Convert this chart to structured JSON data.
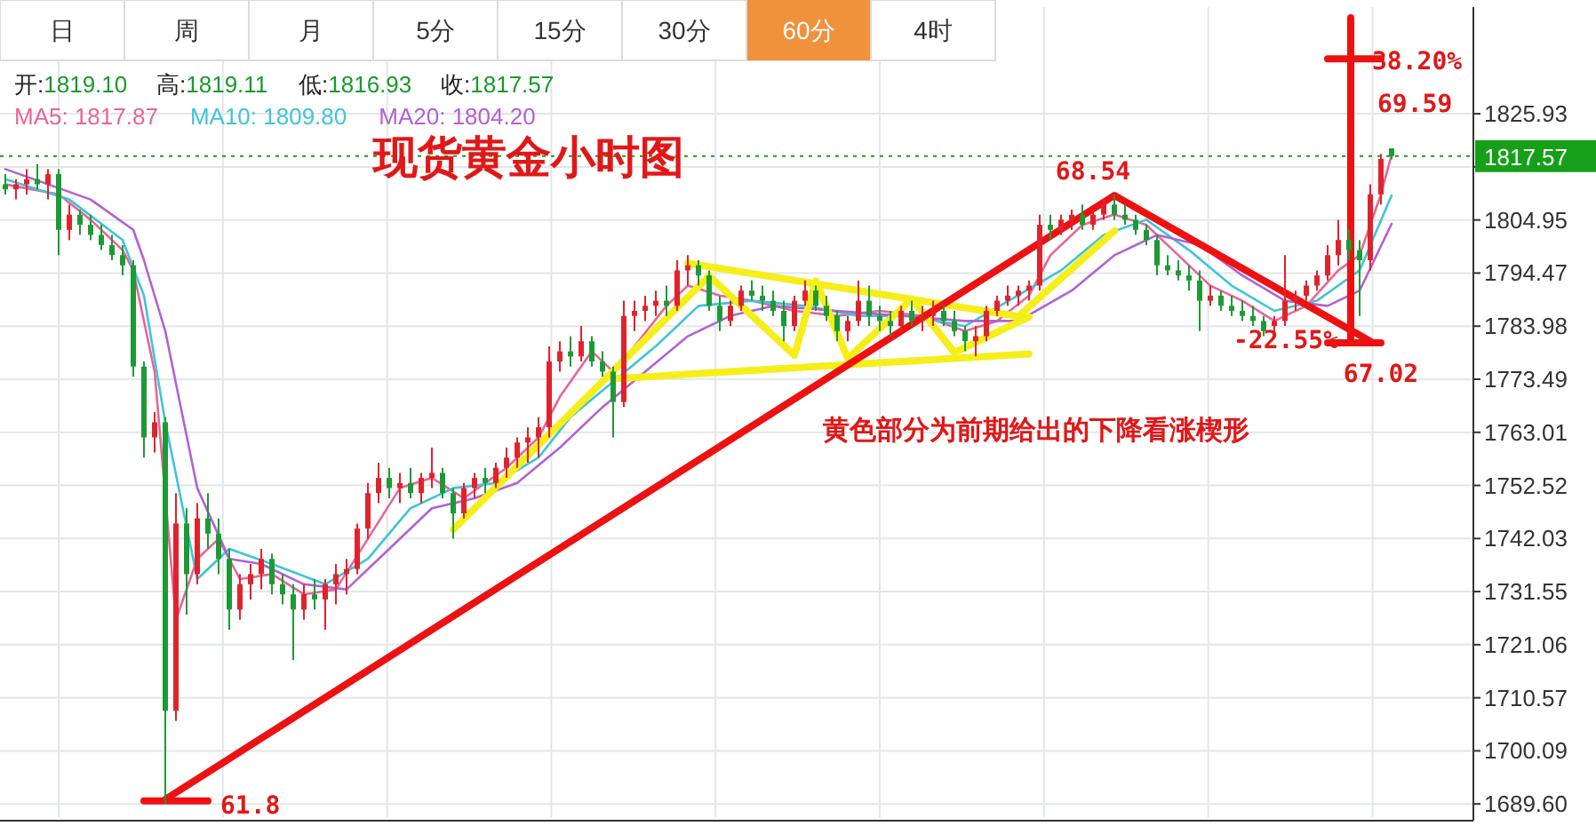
{
  "chart_data": {
    "type": "candlestick",
    "title": "现货黄金小时图",
    "categories": [
      null,
      null,
      null,
      null,
      null,
      null,
      null,
      null,
      null,
      null,
      null,
      null,
      null,
      null,
      null,
      null,
      null,
      null,
      null,
      null,
      null,
      null,
      null,
      null,
      null,
      null,
      null,
      null,
      null,
      null,
      null,
      null,
      null,
      null,
      null,
      null,
      null,
      null,
      null,
      null,
      null,
      null,
      null,
      null,
      null,
      null,
      null,
      null,
      null,
      null,
      null,
      null,
      null,
      null,
      null,
      null,
      null,
      null,
      null,
      null,
      null,
      null,
      null,
      null,
      null,
      null,
      null,
      null,
      null,
      null,
      null,
      null,
      null,
      null,
      null,
      null,
      null,
      null,
      null,
      null,
      null,
      null,
      null,
      null,
      null,
      null,
      null,
      null,
      null,
      null,
      null,
      null,
      null,
      null,
      null,
      null,
      null,
      null,
      null,
      null,
      null,
      null,
      null,
      null,
      null,
      null,
      null,
      null,
      null,
      null,
      null,
      null,
      null,
      null,
      null,
      null,
      null,
      null,
      null,
      null,
      null,
      null,
      null,
      null,
      null,
      null,
      null,
      null,
      null,
      null,
      null
    ],
    "ohlc": [
      [
        1812,
        1814,
        1810,
        1811
      ],
      [
        1811,
        1813,
        1809,
        1812
      ],
      [
        1812,
        1815,
        1810,
        1813
      ],
      [
        1813,
        1816,
        1811,
        1812
      ],
      [
        1812,
        1815,
        1809,
        1814
      ],
      [
        1814,
        1815,
        1798,
        1803
      ],
      [
        1803,
        1808,
        1801,
        1806
      ],
      [
        1806,
        1807,
        1802,
        1804
      ],
      [
        1804,
        1806,
        1801,
        1802
      ],
      [
        1802,
        1804,
        1799,
        1800
      ],
      [
        1800,
        1802,
        1797,
        1798
      ],
      [
        1798,
        1800,
        1794,
        1796
      ],
      [
        1796,
        1797,
        1774,
        1776
      ],
      [
        1776,
        1777,
        1758,
        1762
      ],
      [
        1762,
        1767,
        1759,
        1765
      ],
      [
        1765,
        1766,
        1689.6,
        1708
      ],
      [
        1708,
        1751,
        1706,
        1745
      ],
      [
        1745,
        1748,
        1727,
        1735
      ],
      [
        1735,
        1749,
        1733,
        1746
      ],
      [
        1746,
        1751,
        1740,
        1743
      ],
      [
        1743,
        1746,
        1735,
        1738
      ],
      [
        1738,
        1740,
        1724,
        1728
      ],
      [
        1728,
        1735,
        1726,
        1733
      ],
      [
        1733,
        1737,
        1730,
        1735
      ],
      [
        1735,
        1740,
        1732,
        1738
      ],
      [
        1738,
        1739,
        1731,
        1733
      ],
      [
        1733,
        1735,
        1729,
        1731
      ],
      [
        1731,
        1733,
        1718,
        1728
      ],
      [
        1728,
        1733,
        1726,
        1731
      ],
      [
        1731,
        1734,
        1728,
        1730
      ],
      [
        1730,
        1734,
        1724,
        1733
      ],
      [
        1733,
        1737,
        1729,
        1735
      ],
      [
        1735,
        1738,
        1731,
        1736
      ],
      [
        1736,
        1745,
        1735,
        1744
      ],
      [
        1744,
        1753,
        1742,
        1751
      ],
      [
        1751,
        1757,
        1749,
        1754
      ],
      [
        1754,
        1756,
        1750,
        1752
      ],
      [
        1752,
        1755,
        1749,
        1753
      ],
      [
        1753,
        1756,
        1750,
        1751
      ],
      [
        1751,
        1755,
        1749,
        1754
      ],
      [
        1754,
        1760,
        1752,
        1755
      ],
      [
        1755,
        1756,
        1750,
        1751
      ],
      [
        1751,
        1752,
        1742,
        1747
      ],
      [
        1747,
        1753,
        1746,
        1752
      ],
      [
        1752,
        1755,
        1750,
        1754
      ],
      [
        1754,
        1756,
        1751,
        1753
      ],
      [
        1753,
        1757,
        1752,
        1756
      ],
      [
        1756,
        1760,
        1754,
        1758
      ],
      [
        1758,
        1762,
        1756,
        1761
      ],
      [
        1761,
        1764,
        1757,
        1762
      ],
      [
        1762,
        1766,
        1758,
        1764
      ],
      [
        1764,
        1780,
        1762,
        1777
      ],
      [
        1777,
        1781,
        1775,
        1779
      ],
      [
        1779,
        1782,
        1776,
        1778
      ],
      [
        1778,
        1784,
        1777,
        1781
      ],
      [
        1781,
        1782,
        1776,
        1777
      ],
      [
        1777,
        1779,
        1774,
        1775
      ],
      [
        1775,
        1776,
        1762,
        1769
      ],
      [
        1769,
        1789,
        1768,
        1786
      ],
      [
        1786,
        1789,
        1783,
        1787
      ],
      [
        1787,
        1790,
        1785,
        1788
      ],
      [
        1788,
        1791,
        1786,
        1789
      ],
      [
        1789,
        1792,
        1786,
        1788
      ],
      [
        1788,
        1797,
        1787,
        1795
      ],
      [
        1795,
        1798,
        1792,
        1796
      ],
      [
        1796,
        1797,
        1792,
        1794
      ],
      [
        1794,
        1795,
        1787,
        1788
      ],
      [
        1788,
        1790,
        1783,
        1785
      ],
      [
        1785,
        1789,
        1784,
        1788
      ],
      [
        1788,
        1792,
        1787,
        1791
      ],
      [
        1791,
        1793,
        1789,
        1790
      ],
      [
        1790,
        1792,
        1787,
        1789
      ],
      [
        1789,
        1791,
        1786,
        1787
      ],
      [
        1787,
        1789,
        1781,
        1784
      ],
      [
        1784,
        1790,
        1783,
        1789
      ],
      [
        1789,
        1793,
        1788,
        1791
      ],
      [
        1791,
        1792,
        1787,
        1788
      ],
      [
        1788,
        1790,
        1785,
        1786
      ],
      [
        1786,
        1787,
        1781,
        1783
      ],
      [
        1783,
        1786,
        1781,
        1785
      ],
      [
        1785,
        1793,
        1784,
        1789
      ],
      [
        1789,
        1792,
        1784,
        1786
      ],
      [
        1786,
        1788,
        1783,
        1785
      ],
      [
        1785,
        1787,
        1782,
        1784
      ],
      [
        1784,
        1788,
        1783,
        1787
      ],
      [
        1787,
        1789,
        1784,
        1785
      ],
      [
        1785,
        1788,
        1783,
        1786
      ],
      [
        1786,
        1789,
        1784,
        1787
      ],
      [
        1787,
        1788,
        1784,
        1785
      ],
      [
        1785,
        1787,
        1782,
        1783
      ],
      [
        1783,
        1784,
        1779,
        1781
      ],
      [
        1781,
        1784,
        1778,
        1782
      ],
      [
        1782,
        1788,
        1781,
        1787
      ],
      [
        1787,
        1790,
        1786,
        1789
      ],
      [
        1789,
        1792,
        1788,
        1790
      ],
      [
        1790,
        1792,
        1788,
        1791
      ],
      [
        1791,
        1793,
        1789,
        1792
      ],
      [
        1792,
        1806,
        1791,
        1804
      ],
      [
        1804,
        1806,
        1801,
        1803
      ],
      [
        1803,
        1806,
        1802,
        1805
      ],
      [
        1805,
        1807,
        1803,
        1806
      ],
      [
        1806,
        1808,
        1803,
        1804
      ],
      [
        1804,
        1807,
        1803,
        1806
      ],
      [
        1806,
        1809,
        1805,
        1808
      ],
      [
        1808,
        1810,
        1805,
        1806
      ],
      [
        1806,
        1808,
        1804,
        1805
      ],
      [
        1805,
        1806,
        1802,
        1803
      ],
      [
        1803,
        1804,
        1800,
        1801
      ],
      [
        1801,
        1802,
        1794,
        1796
      ],
      [
        1796,
        1798,
        1794,
        1795
      ],
      [
        1795,
        1797,
        1793,
        1794
      ],
      [
        1794,
        1796,
        1791,
        1793
      ],
      [
        1793,
        1795,
        1783,
        1789
      ],
      [
        1789,
        1792,
        1788,
        1790
      ],
      [
        1790,
        1791,
        1787,
        1788
      ],
      [
        1788,
        1790,
        1786,
        1787
      ],
      [
        1787,
        1789,
        1785,
        1786
      ],
      [
        1786,
        1788,
        1784,
        1785
      ],
      [
        1785,
        1786,
        1782,
        1783
      ],
      [
        1784,
        1786,
        1782,
        1785
      ],
      [
        1785,
        1798,
        1784,
        1789
      ],
      [
        1789,
        1791,
        1787,
        1790
      ],
      [
        1790,
        1793,
        1789,
        1792
      ],
      [
        1792,
        1795,
        1791,
        1794
      ],
      [
        1794,
        1800,
        1793,
        1798
      ],
      [
        1798,
        1805,
        1796,
        1801
      ],
      [
        1801,
        1803,
        1797,
        1799
      ],
      [
        1799,
        1801,
        1786,
        1797
      ],
      [
        1797,
        1812,
        1795,
        1810
      ],
      [
        1810,
        1818,
        1808,
        1817
      ],
      [
        1819.1,
        1819.11,
        1816.93,
        1817.57
      ]
    ],
    "series": [
      {
        "type": "line",
        "name": "MA5: 1817.87",
        "color": "#e8649a",
        "values": [
          1812,
          null,
          null,
          null,
          null,
          1810,
          null,
          null,
          1805,
          null,
          null,
          1799,
          1795,
          null,
          1775,
          null,
          1726,
          null,
          1738,
          null,
          1742,
          null,
          1734,
          null,
          null,
          1735,
          null,
          null,
          1731,
          null,
          null,
          1732,
          null,
          null,
          1742,
          null,
          null,
          1752,
          null,
          null,
          1754,
          null,
          null,
          1750,
          null,
          null,
          null,
          1756,
          null,
          null,
          1762,
          null,
          1770,
          null,
          null,
          1779,
          null,
          1775,
          null,
          1780,
          null,
          null,
          1788,
          null,
          1792,
          null,
          null,
          1790,
          null,
          null,
          1789,
          null,
          null,
          null,
          1787,
          null,
          null,
          null,
          1786,
          null,
          null,
          null,
          1787,
          null,
          null,
          null,
          1786,
          null,
          null,
          null,
          1783,
          null,
          null,
          1785,
          null,
          null,
          1790,
          null,
          1798,
          null,
          null,
          1804,
          null,
          null,
          1806,
          null,
          null,
          1804,
          null,
          null,
          1798,
          null,
          null,
          1792,
          null,
          null,
          1789,
          null,
          null,
          1785,
          null,
          null,
          1788,
          null,
          null,
          1795,
          null,
          1798,
          null,
          1810,
          1817.87
        ]
      },
      {
        "type": "line",
        "name": "MA10: 1809.80",
        "color": "#3fc4d9",
        "values": [
          1813,
          null,
          null,
          null,
          null,
          null,
          1809,
          null,
          null,
          null,
          null,
          1801,
          null,
          1790,
          null,
          1765,
          null,
          null,
          1734,
          null,
          null,
          1740,
          null,
          null,
          null,
          1737,
          null,
          null,
          null,
          null,
          1733,
          null,
          null,
          null,
          1738,
          null,
          null,
          null,
          1748,
          null,
          null,
          null,
          1752,
          null,
          null,
          null,
          1753,
          null,
          null,
          null,
          1758,
          null,
          null,
          1766,
          null,
          null,
          null,
          1773,
          null,
          null,
          null,
          1780,
          null,
          null,
          null,
          1788,
          null,
          null,
          null,
          null,
          1789,
          null,
          null,
          null,
          null,
          1788,
          null,
          null,
          null,
          null,
          1786,
          null,
          null,
          null,
          null,
          1786,
          null,
          null,
          null,
          null,
          1784,
          null,
          null,
          null,
          null,
          null,
          null,
          null,
          null,
          1795,
          null,
          null,
          null,
          1802,
          null,
          null,
          null,
          1805,
          null,
          null,
          null,
          1799,
          null,
          null,
          null,
          1792,
          null,
          null,
          null,
          1787,
          null,
          null,
          null,
          1789,
          null,
          null,
          null,
          1795,
          null,
          null,
          1809.8
        ]
      },
      {
        "type": "line",
        "name": "MA20: 1804.20",
        "color": "#b261d3",
        "values": [
          1815,
          null,
          null,
          null,
          null,
          null,
          null,
          null,
          1809,
          null,
          null,
          null,
          1803,
          1797,
          null,
          1783,
          null,
          null,
          1752,
          null,
          null,
          1738,
          null,
          null,
          1737,
          null,
          null,
          null,
          1733,
          null,
          null,
          null,
          1732,
          null,
          null,
          null,
          1740,
          null,
          null,
          null,
          1748,
          null,
          null,
          null,
          1750,
          null,
          null,
          null,
          1753,
          null,
          null,
          null,
          1760,
          null,
          null,
          null,
          1768,
          null,
          null,
          null,
          1775,
          null,
          null,
          null,
          1782,
          null,
          null,
          null,
          1786,
          null,
          null,
          null,
          1788,
          null,
          null,
          null,
          null,
          null,
          1787,
          null,
          null,
          null,
          null,
          null,
          1786,
          null,
          null,
          null,
          null,
          null,
          1785,
          null,
          null,
          null,
          null,
          1785,
          null,
          null,
          null,
          null,
          1791,
          null,
          null,
          null,
          1798,
          null,
          null,
          null,
          1802,
          null,
          null,
          null,
          1800,
          null,
          null,
          null,
          1794,
          null,
          null,
          null,
          1789,
          null,
          null,
          null,
          1788,
          null,
          null,
          1791,
          null,
          null,
          1804.2
        ]
      },
      {
        "type": "line",
        "color": "#f5ee1a",
        "values": [
          null,
          null,
          null,
          null,
          null,
          null,
          null,
          null,
          null,
          null,
          null,
          null,
          null,
          null,
          null,
          null,
          null,
          null,
          null,
          null,
          null,
          null,
          null,
          null,
          null,
          null,
          null,
          null,
          null,
          null,
          null,
          null,
          null,
          null,
          null,
          null,
          null,
          null,
          null,
          null,
          null,
          null,
          1743.8,
          null,
          null,
          null,
          null,
          null,
          null,
          null,
          null,
          null,
          null,
          null,
          null,
          null,
          null,
          null,
          null,
          null,
          null,
          null,
          null,
          null,
          null,
          null,
          1793.9,
          null,
          null,
          null,
          null,
          null,
          null,
          null,
          null,
          null,
          null,
          null,
          null,
          null,
          null,
          null,
          null,
          null,
          null,
          null,
          null,
          null,
          null,
          null,
          null,
          null,
          null,
          null,
          null,
          null,
          null,
          null,
          null,
          null,
          null,
          null,
          null,
          null,
          null,
          null,
          null,
          null,
          null,
          null,
          null,
          null,
          null,
          null,
          null,
          null,
          null,
          null,
          null,
          null,
          null,
          null,
          null,
          null,
          null,
          null,
          null,
          null,
          null,
          null,
          null
        ]
      },
      {
        "type": "line",
        "color": "#f5ee1a",
        "values": [
          null,
          null,
          null,
          null,
          null,
          null,
          null,
          null,
          null,
          null,
          null,
          null,
          null,
          null,
          null,
          null,
          null,
          null,
          null,
          null,
          null,
          null,
          null,
          null,
          null,
          null,
          null,
          null,
          null,
          null,
          null,
          null,
          null,
          null,
          null,
          null,
          null,
          null,
          null,
          null,
          null,
          null,
          null,
          null,
          null,
          null,
          null,
          null,
          null,
          null,
          null,
          null,
          null,
          null,
          null,
          null,
          null,
          null,
          null,
          null,
          null,
          null,
          null,
          null,
          1796.4,
          null,
          null,
          null,
          null,
          null,
          null,
          null,
          null,
          null,
          null,
          null,
          null,
          null,
          null,
          null,
          null,
          null,
          null,
          null,
          null,
          null,
          null,
          null,
          null,
          null,
          null,
          null,
          null,
          null,
          null,
          1785.9,
          null,
          null,
          null,
          null,
          null,
          null,
          null,
          null,
          null,
          null,
          null,
          null,
          null,
          null,
          null,
          null,
          null,
          null,
          null,
          null,
          null,
          null,
          null,
          null,
          null,
          null,
          null,
          null,
          null,
          null,
          null,
          null,
          null,
          null,
          null
        ]
      },
      {
        "type": "line",
        "color": "#f5ee1a",
        "values": [
          null,
          null,
          null,
          null,
          null,
          null,
          null,
          null,
          null,
          null,
          null,
          null,
          null,
          null,
          null,
          null,
          null,
          null,
          null,
          null,
          null,
          null,
          null,
          null,
          null,
          null,
          null,
          null,
          null,
          null,
          null,
          null,
          null,
          null,
          null,
          null,
          null,
          null,
          null,
          null,
          null,
          null,
          null,
          null,
          null,
          null,
          null,
          null,
          null,
          null,
          null,
          null,
          null,
          null,
          null,
          null,
          null,
          1773.6,
          null,
          null,
          null,
          null,
          null,
          null,
          null,
          null,
          null,
          null,
          null,
          null,
          null,
          null,
          null,
          null,
          null,
          null,
          null,
          null,
          null,
          null,
          null,
          null,
          null,
          null,
          null,
          null,
          null,
          null,
          null,
          null,
          null,
          null,
          null,
          null,
          null,
          null,
          1778.5,
          null,
          null,
          null,
          null,
          null,
          null,
          null,
          null,
          null,
          null,
          null,
          null,
          null,
          null,
          null,
          null,
          null,
          null,
          null,
          null,
          null,
          null,
          null,
          null,
          null,
          null,
          null,
          null,
          null,
          null,
          null,
          null,
          null,
          null
        ]
      },
      {
        "type": "line",
        "color": "#f5ee1a",
        "values": [
          null,
          null,
          null,
          null,
          null,
          null,
          null,
          null,
          null,
          null,
          null,
          null,
          null,
          null,
          null,
          null,
          null,
          null,
          null,
          null,
          null,
          null,
          null,
          null,
          null,
          null,
          null,
          null,
          null,
          null,
          null,
          null,
          null,
          null,
          null,
          null,
          null,
          null,
          null,
          null,
          null,
          null,
          null,
          null,
          null,
          null,
          null,
          null,
          null,
          null,
          null,
          null,
          null,
          null,
          null,
          null,
          null,
          null,
          null,
          null,
          null,
          null,
          null,
          null,
          null,
          null,
          1793.9,
          null,
          null,
          null,
          null,
          null,
          null,
          null,
          1778.2,
          null,
          1792.9,
          null,
          null,
          1777.6,
          null,
          null,
          null,
          null,
          null,
          1789.4,
          null,
          null,
          null,
          1778.8,
          null,
          null,
          null,
          null,
          null,
          null,
          1785.8,
          null,
          null,
          null,
          null,
          null,
          null,
          null,
          null,
          null,
          null,
          null,
          null,
          null,
          null,
          null,
          null,
          null,
          null,
          null,
          null,
          null,
          null,
          null,
          null,
          null,
          null,
          null,
          null,
          null,
          null,
          null,
          null,
          null,
          null
        ]
      },
      {
        "type": "line",
        "color": "#f5ee1a",
        "values": [
          null,
          null,
          null,
          null,
          null,
          null,
          null,
          null,
          null,
          null,
          null,
          null,
          null,
          null,
          null,
          null,
          null,
          null,
          null,
          null,
          null,
          null,
          null,
          null,
          null,
          null,
          null,
          null,
          null,
          null,
          null,
          null,
          null,
          null,
          null,
          null,
          null,
          null,
          null,
          null,
          null,
          null,
          null,
          null,
          null,
          null,
          null,
          null,
          null,
          null,
          null,
          null,
          null,
          null,
          null,
          null,
          null,
          null,
          null,
          null,
          null,
          null,
          null,
          null,
          null,
          null,
          null,
          null,
          null,
          null,
          null,
          null,
          null,
          null,
          null,
          null,
          null,
          null,
          null,
          null,
          null,
          null,
          null,
          null,
          null,
          null,
          null,
          null,
          null,
          null,
          null,
          null,
          null,
          null,
          null,
          1785.9,
          null,
          null,
          null,
          null,
          null,
          null,
          null,
          null,
          1802.8,
          null,
          null,
          null,
          null,
          null,
          null,
          null,
          null,
          null,
          null,
          null,
          null,
          null,
          null,
          null,
          null,
          null,
          null,
          null,
          null,
          null,
          null,
          null,
          null,
          null,
          null
        ]
      },
      {
        "type": "line",
        "color": "#ee1111",
        "values": [
          null,
          null,
          null,
          null,
          null,
          null,
          null,
          null,
          null,
          null,
          null,
          null,
          null,
          1690.2,
          null,
          null,
          null,
          null,
          null,
          1690.2,
          null,
          null,
          null,
          null,
          null,
          null,
          null,
          null,
          null,
          null,
          null,
          null,
          null,
          null,
          null,
          null,
          null,
          null,
          null,
          null,
          null,
          null,
          null,
          null,
          null,
          null,
          null,
          null,
          null,
          null,
          null,
          null,
          null,
          null,
          null,
          null,
          null,
          null,
          null,
          null,
          null,
          null,
          null,
          null,
          null,
          null,
          null,
          null,
          null,
          null,
          null,
          null,
          null,
          null,
          null,
          null,
          null,
          null,
          null,
          null,
          null,
          null,
          null,
          null,
          null,
          null,
          null,
          null,
          null,
          null,
          null,
          null,
          null,
          null,
          null,
          null,
          null,
          null,
          null,
          null,
          null,
          null,
          null,
          null,
          null,
          null,
          null,
          null,
          null,
          null,
          null,
          null,
          null,
          null,
          null,
          null,
          null,
          null,
          null,
          null,
          null,
          null,
          null,
          null,
          null,
          null,
          null,
          null,
          null,
          null,
          null
        ]
      },
      {
        "type": "line",
        "color": "#ee1111",
        "values": [
          null,
          null,
          null,
          null,
          null,
          null,
          null,
          null,
          null,
          null,
          null,
          null,
          null,
          null,
          null,
          1690.5,
          null,
          null,
          null,
          null,
          null,
          null,
          null,
          null,
          null,
          null,
          null,
          null,
          null,
          null,
          null,
          null,
          null,
          null,
          null,
          null,
          null,
          null,
          null,
          null,
          null,
          null,
          null,
          null,
          null,
          null,
          null,
          null,
          null,
          null,
          null,
          null,
          null,
          null,
          null,
          null,
          null,
          null,
          null,
          null,
          null,
          null,
          null,
          null,
          null,
          null,
          null,
          null,
          null,
          null,
          null,
          null,
          null,
          null,
          null,
          null,
          null,
          null,
          null,
          null,
          null,
          null,
          null,
          null,
          null,
          null,
          null,
          null,
          null,
          null,
          null,
          null,
          null,
          null,
          null,
          null,
          null,
          null,
          null,
          null,
          null,
          null,
          null,
          null,
          1809.8,
          null,
          null,
          null,
          null,
          null,
          null,
          null,
          null,
          null,
          null,
          null,
          null,
          null,
          null,
          null,
          null,
          null,
          null,
          null,
          null,
          null,
          null,
          null,
          1781.0,
          null,
          null
        ]
      },
      {
        "type": "line",
        "color": "#ee1111",
        "values": [
          null,
          null,
          null,
          null,
          null,
          null,
          null,
          null,
          null,
          null,
          null,
          null,
          null,
          null,
          null,
          null,
          null,
          null,
          null,
          null,
          null,
          null,
          null,
          null,
          null,
          null,
          null,
          null,
          null,
          null,
          null,
          null,
          null,
          null,
          null,
          null,
          null,
          null,
          null,
          null,
          null,
          null,
          null,
          null,
          null,
          null,
          null,
          null,
          null,
          null,
          null,
          null,
          null,
          null,
          null,
          null,
          null,
          null,
          null,
          null,
          null,
          null,
          null,
          null,
          null,
          null,
          null,
          null,
          null,
          null,
          null,
          null,
          null,
          null,
          null,
          null,
          null,
          null,
          null,
          null,
          null,
          null,
          null,
          null,
          null,
          null,
          null,
          null,
          null,
          null,
          null,
          null,
          null,
          null,
          null,
          null,
          null,
          null,
          null,
          null,
          null,
          null,
          null,
          null,
          null,
          null,
          null,
          null,
          null,
          null,
          null,
          null,
          null,
          null,
          null,
          null,
          null,
          null,
          null,
          null,
          null,
          null,
          null,
          null,
          1780.7,
          null,
          null,
          null,
          null,
          1780.7,
          null
        ]
      },
      {
        "type": "line",
        "color": "#ee1111",
        "values": [
          null,
          null,
          null,
          null,
          null,
          null,
          null,
          null,
          null,
          null,
          null,
          null,
          null,
          null,
          null,
          null,
          null,
          null,
          null,
          null,
          null,
          null,
          null,
          null,
          null,
          null,
          null,
          null,
          null,
          null,
          null,
          null,
          null,
          null,
          null,
          null,
          null,
          null,
          null,
          null,
          null,
          null,
          null,
          null,
          null,
          null,
          null,
          null,
          null,
          null,
          null,
          null,
          null,
          null,
          null,
          null,
          null,
          null,
          null,
          null,
          null,
          null,
          null,
          null,
          null,
          null,
          null,
          null,
          null,
          null,
          null,
          null,
          null,
          null,
          null,
          null,
          null,
          null,
          null,
          null,
          null,
          null,
          null,
          null,
          null,
          null,
          null,
          null,
          null,
          null,
          null,
          null,
          null,
          null,
          null,
          null,
          null,
          null,
          null,
          null,
          null,
          null,
          null,
          null,
          null,
          null,
          null,
          null,
          null,
          null,
          null,
          null,
          null,
          null,
          null,
          null,
          null,
          null,
          null,
          null,
          null,
          null,
          null,
          null,
          1836.8,
          null,
          null,
          null,
          null,
          1836.8,
          null
        ]
      }
    ],
    "ylim": [
      1687,
      1847
    ],
    "yticks": [
      {
        "value": 1689.6,
        "label": "1689.60"
      },
      1700.09,
      1710.57,
      1721.06,
      1731.55,
      1742.03,
      1752.52,
      1763.01,
      1773.49,
      1783.98,
      1794.47,
      1804.95,
      {
        "value": 1815.44,
        "label": null
      },
      1825.93
    ],
    "ref_lines": [
      {
        "axis": "y",
        "value": 1817.57,
        "label": "1817.57",
        "color": "#16a01a",
        "line_style": "dotted"
      }
    ],
    "grid": true,
    "annotations": [
      "日",
      "周",
      "月",
      "5分",
      "15分",
      "30分",
      "60分",
      "4时",
      "开:1819.10",
      "高:1819.11",
      "低:1816.93",
      "收:1817.57",
      "黄色部分为前期给出的下降看涨楔形",
      "68.54",
      "-22.55%",
      "67.02",
      "38.20%",
      "69.59",
      "61.8"
    ]
  }
}
